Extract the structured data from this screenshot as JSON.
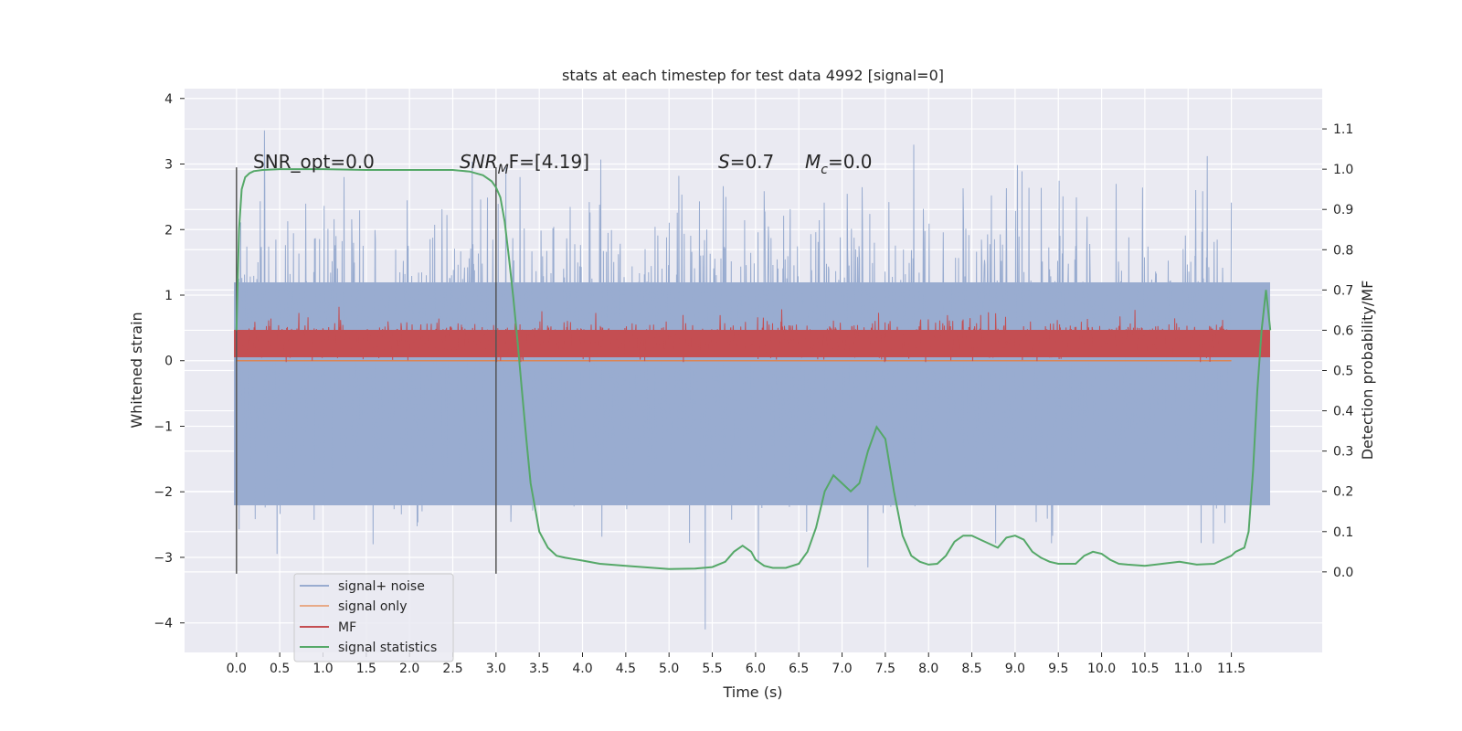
{
  "chart_data": {
    "type": "line",
    "title": "stats at each timestep for test data 4992 [signal=0]",
    "xlabel": "Time (s)",
    "ylabel": "Whitened strain",
    "ylabel_right": "Detection probability/MF",
    "xlim": [
      -0.6,
      12.55
    ],
    "ylim": [
      -4.45,
      4.15
    ],
    "ylim_right": [
      -0.2,
      1.2
    ],
    "x_ticks": [
      0.0,
      0.5,
      1.0,
      1.5,
      2.0,
      2.5,
      3.0,
      3.5,
      4.0,
      4.5,
      5.0,
      5.5,
      6.0,
      6.5,
      7.0,
      7.5,
      8.0,
      8.5,
      9.0,
      9.5,
      10.0,
      10.5,
      11.0,
      11.5
    ],
    "x_tick_labels": [
      "0.0",
      "0.5",
      "1.0",
      "1.5",
      "2.0",
      "2.5",
      "3.0",
      "3.5",
      "4.0",
      "4.5",
      "5.0",
      "5.5",
      "6.0",
      "6.5",
      "7.0",
      "7.5",
      "8.0",
      "8.5",
      "9.0",
      "9.5",
      "10.0",
      "10.5",
      "11.0",
      "11.5"
    ],
    "y_ticks": [
      -4,
      -3,
      -2,
      -1,
      0,
      1,
      2,
      3,
      4
    ],
    "y_tick_labels": [
      "−4",
      "−3",
      "−2",
      "−1",
      "0",
      "1",
      "2",
      "3",
      "4"
    ],
    "y_right_ticks": [
      0.0,
      0.1,
      0.2,
      0.3,
      0.4,
      0.5,
      0.6,
      0.7,
      0.8,
      0.9,
      1.0,
      1.1
    ],
    "y_right_tick_labels": [
      "0.0",
      "0.1",
      "0.2",
      "0.3",
      "0.4",
      "0.5",
      "0.6",
      "0.7",
      "0.8",
      "0.9",
      "1.0",
      "1.1"
    ],
    "grid": true,
    "legend_position": "lower-left",
    "annotations": {
      "snr_opt": "SNR_opt=0.0",
      "snr_mf_a": "SNR",
      "snr_mf_b": "M",
      "snr_mf_c": "F=[4.19]",
      "s_a": "S",
      "s_b": "=0.7",
      "mc_a": "M",
      "mc_b": "c",
      "mc_c": "=0.0"
    },
    "vlines": [
      {
        "x": 0.0,
        "ymin": -3.25,
        "ymax": 2.95
      },
      {
        "x": 3.0,
        "ymin": -3.25,
        "ymax": 2.95
      }
    ],
    "series": [
      {
        "name": "signal+ noise",
        "axis": "left",
        "color": "#4c72b0",
        "description": "dense noise trace spanning roughly -3 to +3 (peaks to about +3.8 / -4.1) from t=0 to 11.5"
      },
      {
        "name": "signal only",
        "axis": "left",
        "color": "#dd8452",
        "x": [
          0,
          11.5
        ],
        "y": [
          0,
          0
        ]
      },
      {
        "name": "MF",
        "axis": "left",
        "color": "#c44e52",
        "description": "trace between about 0 and 0.6, peaks near 0.95, from t=0 to 11.5"
      },
      {
        "name": "signal statistics",
        "axis": "right",
        "color": "#55a868",
        "x": [
          0.0,
          0.03,
          0.06,
          0.1,
          0.15,
          0.2,
          0.3,
          0.5,
          1.0,
          1.5,
          2.0,
          2.5,
          2.7,
          2.85,
          2.95,
          3.0,
          3.05,
          3.1,
          3.15,
          3.2,
          3.25,
          3.3,
          3.35,
          3.4,
          3.5,
          3.6,
          3.7,
          3.8,
          4.0,
          4.2,
          4.5,
          5.0,
          5.3,
          5.5,
          5.65,
          5.75,
          5.85,
          5.95,
          6.0,
          6.1,
          6.2,
          6.35,
          6.5,
          6.6,
          6.7,
          6.8,
          6.9,
          7.0,
          7.1,
          7.2,
          7.3,
          7.4,
          7.5,
          7.6,
          7.7,
          7.8,
          7.9,
          8.0,
          8.1,
          8.2,
          8.3,
          8.4,
          8.5,
          8.6,
          8.7,
          8.8,
          8.9,
          9.0,
          9.1,
          9.2,
          9.3,
          9.4,
          9.5,
          9.7,
          9.8,
          9.9,
          10.0,
          10.1,
          10.2,
          10.3,
          10.5,
          10.7,
          10.9,
          11.1,
          11.3,
          11.5,
          11.55,
          11.65,
          11.7,
          11.75,
          11.8,
          11.85,
          11.9,
          11.95
        ],
        "y": [
          0.6,
          0.85,
          0.95,
          0.98,
          0.99,
          0.995,
          0.998,
          1.0,
          1.0,
          0.998,
          0.998,
          0.998,
          0.994,
          0.985,
          0.97,
          0.955,
          0.93,
          0.87,
          0.78,
          0.68,
          0.57,
          0.45,
          0.33,
          0.22,
          0.1,
          0.06,
          0.04,
          0.035,
          0.028,
          0.02,
          0.015,
          0.007,
          0.008,
          0.012,
          0.025,
          0.05,
          0.065,
          0.05,
          0.03,
          0.015,
          0.01,
          0.01,
          0.02,
          0.05,
          0.11,
          0.2,
          0.24,
          0.22,
          0.2,
          0.22,
          0.3,
          0.36,
          0.33,
          0.2,
          0.09,
          0.04,
          0.025,
          0.018,
          0.02,
          0.04,
          0.075,
          0.09,
          0.09,
          0.08,
          0.07,
          0.06,
          0.085,
          0.09,
          0.08,
          0.05,
          0.035,
          0.025,
          0.02,
          0.02,
          0.04,
          0.05,
          0.045,
          0.03,
          0.02,
          0.018,
          0.015,
          0.02,
          0.025,
          0.018,
          0.02,
          0.04,
          0.05,
          0.06,
          0.1,
          0.25,
          0.45,
          0.6,
          0.7,
          0.6
        ]
      }
    ]
  }
}
